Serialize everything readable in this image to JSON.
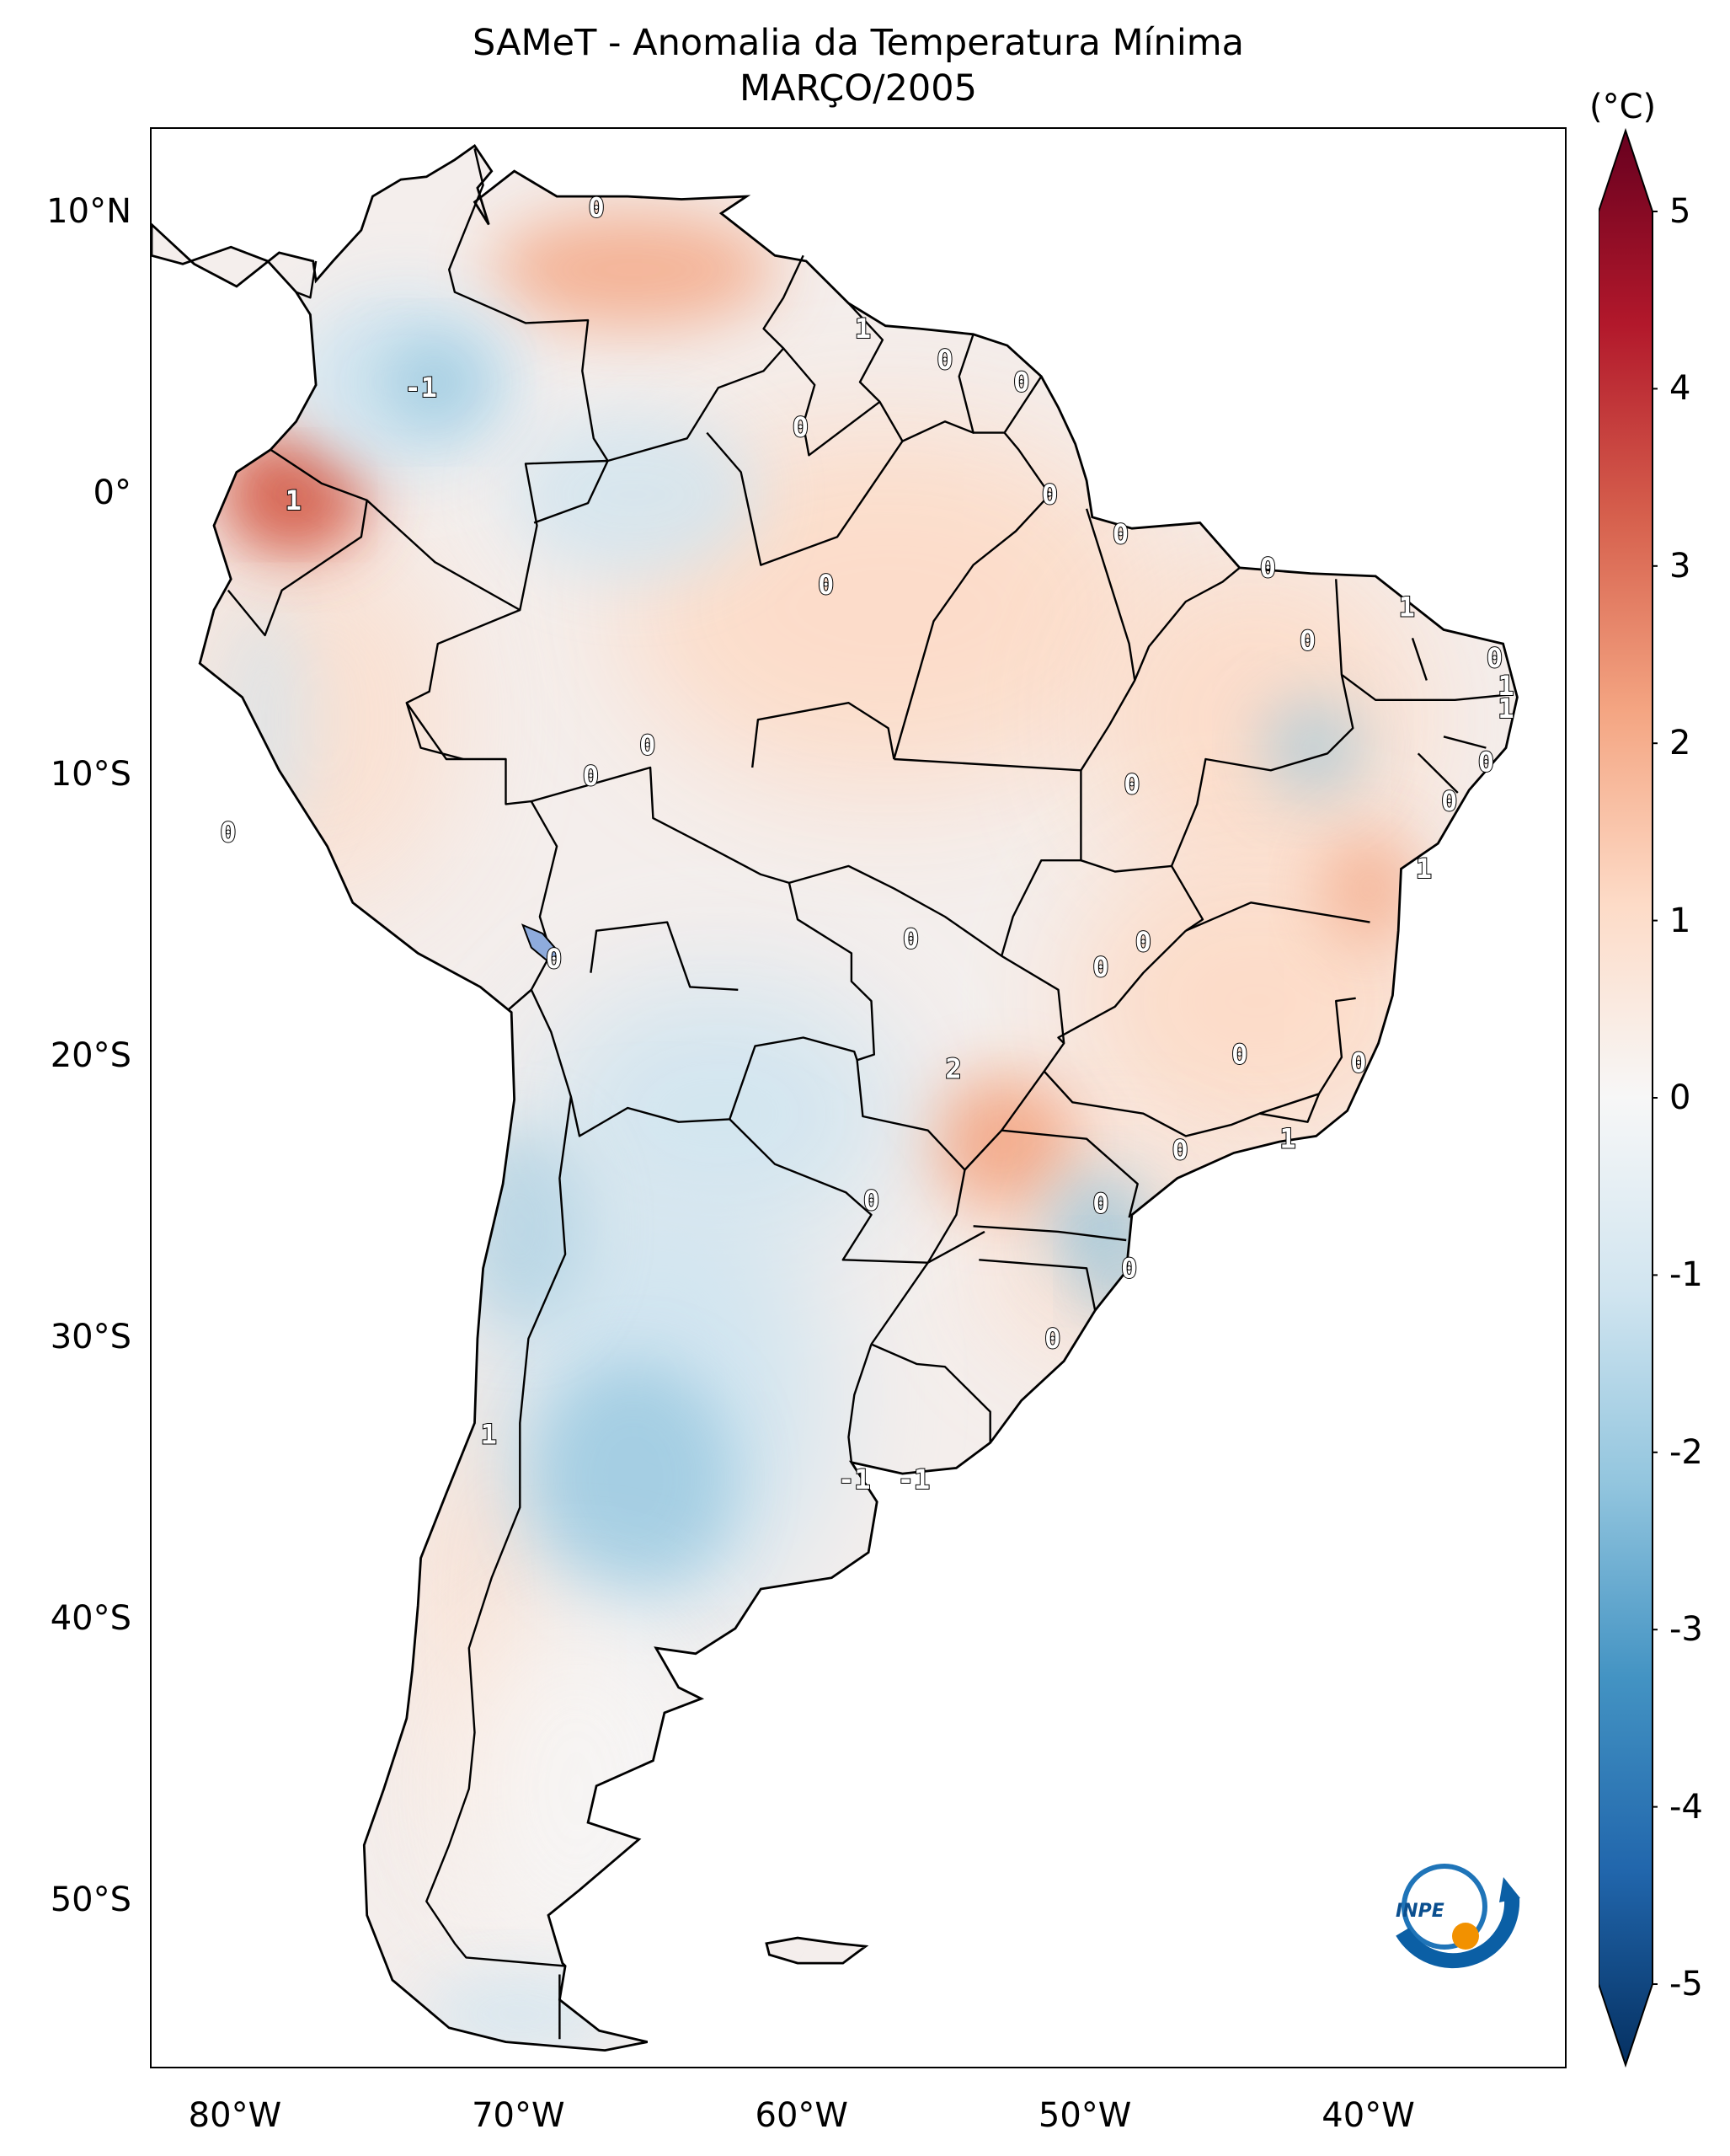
{
  "title": {
    "line1": "SAMeT - Anomalia da Temperatura Mínima",
    "line2": "MARÇO/2005"
  },
  "axes": {
    "lat_labels": [
      "10°N",
      "0°",
      "10°S",
      "20°S",
      "30°S",
      "40°S",
      "50°S"
    ],
    "lon_labels": [
      "80°W",
      "70°W",
      "60°W",
      "50°W",
      "40°W"
    ],
    "lat_range": [
      -56,
      13
    ],
    "lon_range": [
      -83,
      -33
    ]
  },
  "colorbar": {
    "unit": "(°C)",
    "ticks": [
      "5",
      "4",
      "3",
      "2",
      "1",
      "0",
      "-1",
      "-2",
      "-3",
      "-4",
      "-5"
    ],
    "range": [
      -5,
      5
    ],
    "colormap": "RdBu_r",
    "colors": [
      "#053061",
      "#2166ac",
      "#4393c3",
      "#92c5de",
      "#d1e5f0",
      "#f7f7f7",
      "#fddbc7",
      "#f4a582",
      "#d6604d",
      "#b2182b",
      "#67001f"
    ]
  },
  "contour_labels": [
    {
      "text": "0",
      "lon": -67.3,
      "lat": 10.2
    },
    {
      "text": "1",
      "lon": -57.9,
      "lat": 5.9
    },
    {
      "text": "0",
      "lon": -55.0,
      "lat": 4.8
    },
    {
      "text": "0",
      "lon": -52.3,
      "lat": 4.0
    },
    {
      "text": "-1",
      "lon": -73.5,
      "lat": 3.8
    },
    {
      "text": "0",
      "lon": -60.1,
      "lat": 2.4
    },
    {
      "text": "0",
      "lon": -51.3,
      "lat": 0.0
    },
    {
      "text": "1",
      "lon": -78.0,
      "lat": -0.2
    },
    {
      "text": "0",
      "lon": -48.8,
      "lat": -1.4
    },
    {
      "text": "0",
      "lon": -43.6,
      "lat": -2.6
    },
    {
      "text": "0",
      "lon": -59.2,
      "lat": -3.2
    },
    {
      "text": "1",
      "lon": -38.7,
      "lat": -4.0
    },
    {
      "text": "0",
      "lon": -42.2,
      "lat": -5.2
    },
    {
      "text": "0",
      "lon": -35.6,
      "lat": -5.8
    },
    {
      "text": "1",
      "lon": -35.2,
      "lat": -6.8
    },
    {
      "text": "1",
      "lon": -35.2,
      "lat": -7.6
    },
    {
      "text": "0",
      "lon": -65.5,
      "lat": -8.9
    },
    {
      "text": "0",
      "lon": -35.9,
      "lat": -9.5
    },
    {
      "text": "0",
      "lon": -67.5,
      "lat": -10.0
    },
    {
      "text": "0",
      "lon": -48.4,
      "lat": -10.3
    },
    {
      "text": "0",
      "lon": -37.2,
      "lat": -10.9
    },
    {
      "text": "0",
      "lon": -80.3,
      "lat": -12.0
    },
    {
      "text": "1",
      "lon": -38.1,
      "lat": -13.3
    },
    {
      "text": "0",
      "lon": -56.2,
      "lat": -15.8
    },
    {
      "text": "0",
      "lon": -48.0,
      "lat": -15.9
    },
    {
      "text": "0",
      "lon": -49.5,
      "lat": -16.8
    },
    {
      "text": "0",
      "lon": -68.8,
      "lat": -16.5
    },
    {
      "text": "2",
      "lon": -54.7,
      "lat": -20.4
    },
    {
      "text": "0",
      "lon": -44.6,
      "lat": -19.9
    },
    {
      "text": "0",
      "lon": -40.4,
      "lat": -20.2
    },
    {
      "text": "1",
      "lon": -42.9,
      "lat": -22.9
    },
    {
      "text": "0",
      "lon": -46.7,
      "lat": -23.3
    },
    {
      "text": "0",
      "lon": -57.6,
      "lat": -25.1
    },
    {
      "text": "0",
      "lon": -49.5,
      "lat": -25.2
    },
    {
      "text": "0",
      "lon": -48.5,
      "lat": -27.5
    },
    {
      "text": "0",
      "lon": -51.2,
      "lat": -30.0
    },
    {
      "text": "1",
      "lon": -71.1,
      "lat": -33.4
    },
    {
      "text": "-1",
      "lon": -58.2,
      "lat": -35.0
    },
    {
      "text": "-1",
      "lon": -56.1,
      "lat": -35.0
    }
  ],
  "logo": {
    "text": "INPE"
  }
}
